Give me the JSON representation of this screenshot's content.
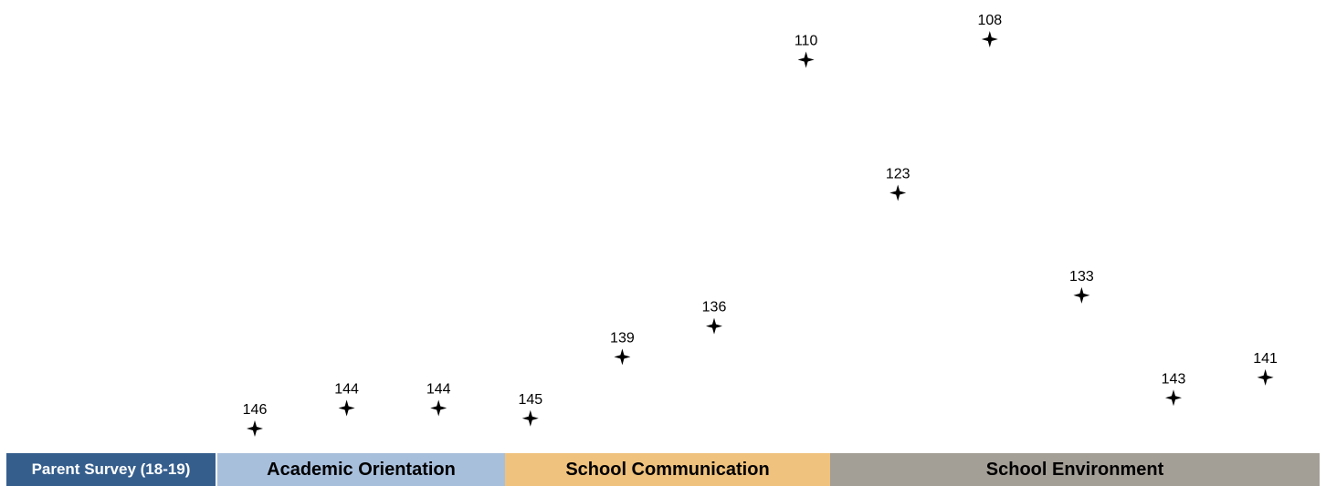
{
  "chart_data": {
    "type": "scatter",
    "marker": "four-point-star",
    "title": "",
    "xlabel": "",
    "ylabel": "",
    "ylim": [
      100,
      150
    ],
    "grid": false,
    "points": [
      {
        "x": 1,
        "y": 146
      },
      {
        "x": 2,
        "y": 144
      },
      {
        "x": 3,
        "y": 144
      },
      {
        "x": 4,
        "y": 145
      },
      {
        "x": 5,
        "y": 139
      },
      {
        "x": 6,
        "y": 136
      },
      {
        "x": 7,
        "y": 110
      },
      {
        "x": 8,
        "y": 123
      },
      {
        "x": 9,
        "y": 108
      },
      {
        "x": 10,
        "y": 133
      },
      {
        "x": 11,
        "y": 143
      },
      {
        "x": 12,
        "y": 141
      }
    ],
    "category_bar": [
      {
        "label": "Parent Survey (18-19)",
        "color": "#355e8d"
      },
      {
        "label": "Academic Orientation",
        "color": "#a8bfdc"
      },
      {
        "label": "School Communication",
        "color": "#efc27d"
      },
      {
        "label": "School Environment",
        "color": "#a39e96"
      }
    ]
  }
}
